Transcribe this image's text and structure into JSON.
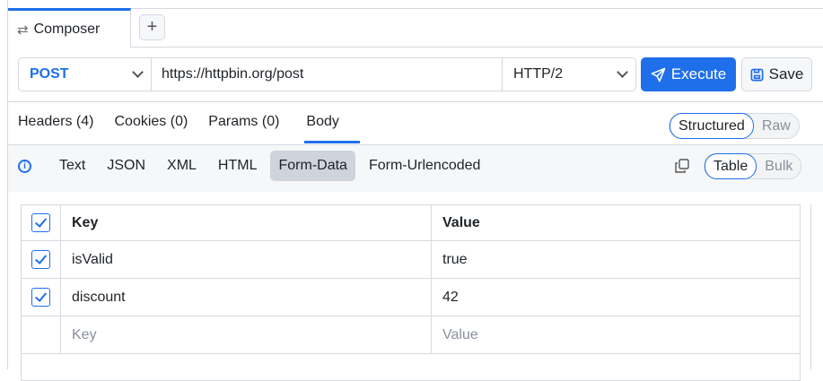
{
  "tab": {
    "label": "Composer",
    "icon": "arrows-swap-icon",
    "add_icon": "plus-icon"
  },
  "request": {
    "method": "POST",
    "url": "https://httpbin.org/post",
    "protocol": "HTTP/2",
    "execute_label": "Execute",
    "save_label": "Save"
  },
  "section_tabs": [
    {
      "label": "Headers (4)"
    },
    {
      "label": "Cookies (0)"
    },
    {
      "label": "Params (0)"
    },
    {
      "label": "Body",
      "active": true
    }
  ],
  "mode_toggle": {
    "options": [
      "Structured",
      "Raw"
    ],
    "selected": "Structured"
  },
  "body_formats": [
    {
      "label": "Text"
    },
    {
      "label": "JSON"
    },
    {
      "label": "XML"
    },
    {
      "label": "HTML"
    },
    {
      "label": "Form-Data",
      "selected": true
    },
    {
      "label": "Form-Urlencoded"
    }
  ],
  "view_toggle": {
    "options": [
      "Table",
      "Bulk"
    ],
    "selected": "Table"
  },
  "table": {
    "headers": {
      "key": "Key",
      "value": "Value"
    },
    "rows": [
      {
        "key": "isValid",
        "value": "true",
        "checked": true
      },
      {
        "key": "discount",
        "value": "42",
        "checked": true
      }
    ],
    "placeholders": {
      "key": "Key",
      "value": "Value"
    }
  },
  "colors": {
    "accent": "#1f6feb"
  }
}
